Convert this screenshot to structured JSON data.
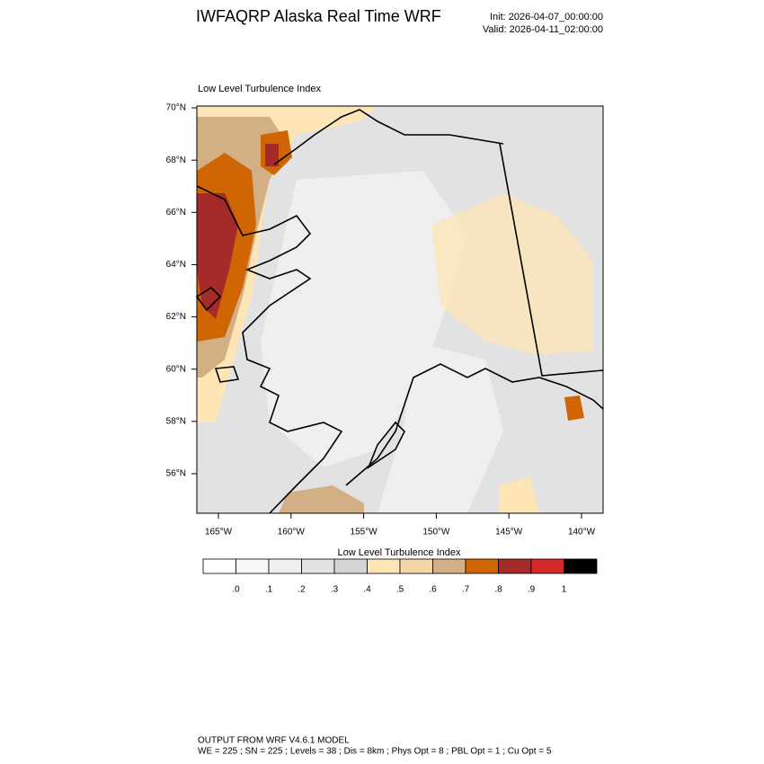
{
  "header": {
    "title": "IWFAQRP Alaska Real Time WRF",
    "init": "Init: 2026-04-07_00:00:00",
    "valid": "Valid: 2026-04-11_02:00:00"
  },
  "map": {
    "subtitle": "Low Level Turbulence Index",
    "lat_ticks": [
      {
        "value": 70,
        "label": "70°N"
      },
      {
        "value": 68,
        "label": "68°N"
      },
      {
        "value": 66,
        "label": "66°N"
      },
      {
        "value": 64,
        "label": "64°N"
      },
      {
        "value": 62,
        "label": "62°N"
      },
      {
        "value": 60,
        "label": "60°N"
      },
      {
        "value": 58,
        "label": "58°N"
      },
      {
        "value": 56,
        "label": "56°N"
      }
    ],
    "lon_ticks": [
      {
        "value": -165,
        "label": "165°W"
      },
      {
        "value": -160,
        "label": "160°W"
      },
      {
        "value": -155,
        "label": "155°W"
      },
      {
        "value": -150,
        "label": "150°W"
      },
      {
        "value": -145,
        "label": "145°W"
      },
      {
        "value": -140,
        "label": "140°W"
      }
    ]
  },
  "colorbar": {
    "title": "Low Level Turbulence Index",
    "colors": [
      "#ffffff",
      "#f7f7f7",
      "#efefef",
      "#e2e2e2",
      "#d4d4d4",
      "#fde5b5",
      "#f3d6a4",
      "#d3af86",
      "#cf6503",
      "#a52a2a",
      "#d62a2a",
      "#000000"
    ],
    "ticks": [
      {
        "value": 0,
        "label": ".0"
      },
      {
        "value": 0.1,
        "label": ".1"
      },
      {
        "value": 0.2,
        "label": ".2"
      },
      {
        "value": 0.3,
        "label": ".3"
      },
      {
        "value": 0.4,
        "label": ".4"
      },
      {
        "value": 0.5,
        "label": ".5"
      },
      {
        "value": 0.6,
        "label": ".6"
      },
      {
        "value": 0.7,
        "label": ".7"
      },
      {
        "value": 0.8,
        "label": ".8"
      },
      {
        "value": 0.9,
        "label": ".9"
      },
      {
        "value": 1,
        "label": "1"
      }
    ]
  },
  "footer": {
    "line1": "OUTPUT FROM WRF V4.6.1 MODEL",
    "line2": "WE = 225 ; SN = 225 ; Levels = 38 ; Dis = 8km ; Phys Opt = 8 ; PBL Opt = 1 ; Cu Opt = 5"
  }
}
